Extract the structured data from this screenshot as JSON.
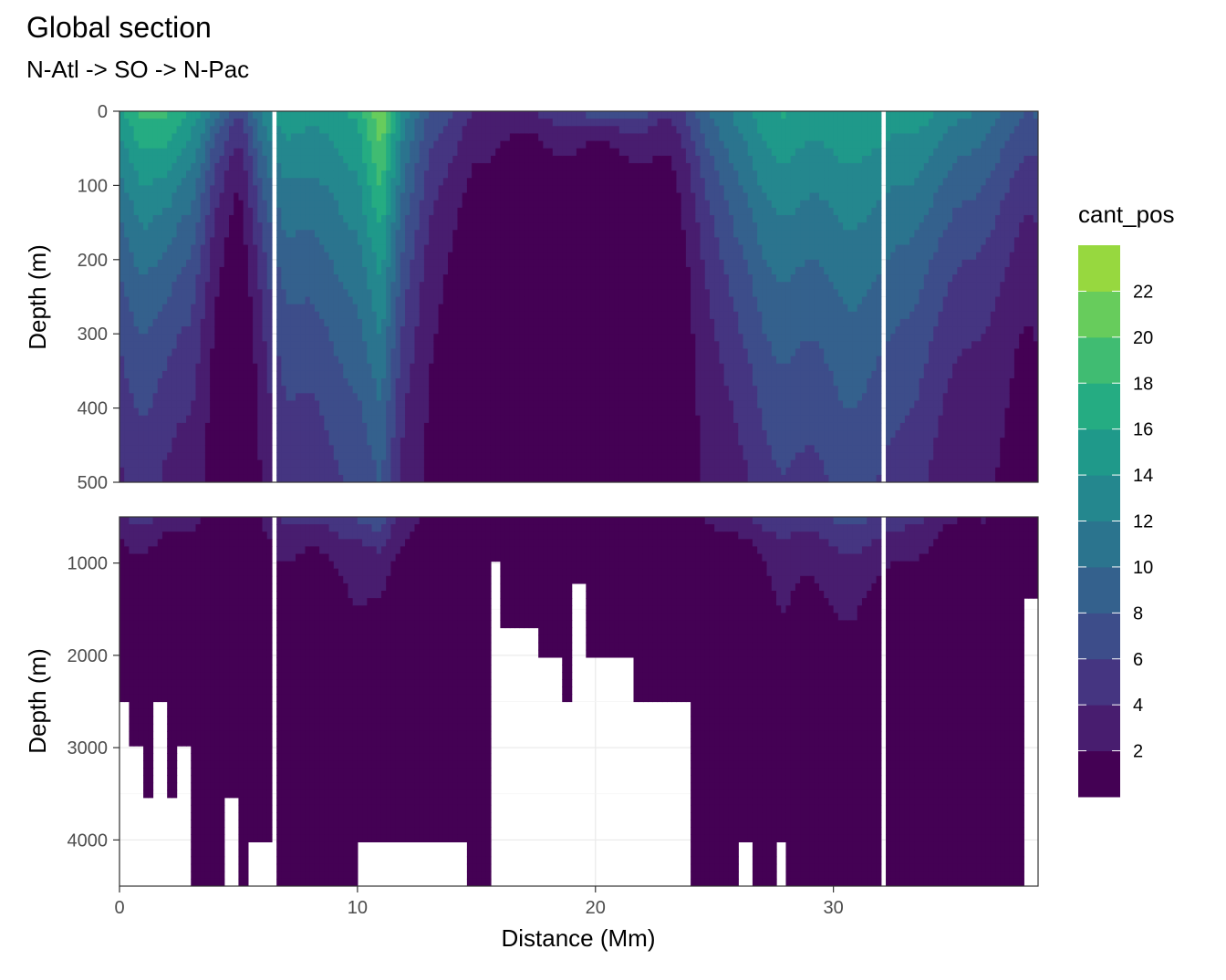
{
  "chart_data": {
    "type": "heatmap",
    "title": "Global section",
    "subtitle": "N-Atl -> SO -> N-Pac",
    "xlabel": "Distance (Mm)",
    "ylabel": "Depth (m)",
    "xlim": [
      0,
      38.6
    ],
    "x_ticks": [
      "0",
      "10",
      "20",
      "30"
    ],
    "panels": [
      {
        "name": "upper",
        "ylim": [
          0,
          500
        ],
        "y_ticks": [
          "0",
          "100",
          "200",
          "300",
          "400",
          "500"
        ]
      },
      {
        "name": "lower",
        "ylim": [
          500,
          4500
        ],
        "y_ticks": [
          "1000",
          "2000",
          "3000",
          "4000"
        ]
      }
    ],
    "legend": {
      "title": "cant_pos",
      "position": "right",
      "breaks": [
        0,
        2,
        4,
        6,
        8,
        10,
        12,
        14,
        16,
        18,
        20,
        22,
        24
      ],
      "labels": [
        "2",
        "4",
        "6",
        "8",
        "10",
        "12",
        "14",
        "16",
        "18",
        "20",
        "22"
      ],
      "colors": [
        "#440154",
        "#481d6f",
        "#453581",
        "#3d4d8a",
        "#34618d",
        "#2b748e",
        "#24878e",
        "#1f998a",
        "#25ac82",
        "#40bc72",
        "#67cc5c",
        "#97d83f",
        "#cbe11e",
        "#fde725"
      ]
    },
    "grid": true,
    "gaps_x": [
      6.6,
      32.1
    ],
    "profile": {
      "x": [
        0,
        1,
        2,
        3,
        4,
        5,
        6,
        7,
        8,
        9,
        10,
        11,
        12,
        13,
        14,
        15,
        16,
        17,
        18,
        19,
        20,
        21,
        22,
        23,
        24,
        25,
        26,
        27,
        28,
        29,
        30,
        31,
        32,
        33,
        34,
        35,
        36,
        37,
        38
      ],
      "surface": [
        14,
        17,
        18,
        15,
        10,
        6,
        12,
        14,
        14,
        14,
        15,
        22,
        12,
        7,
        6,
        3,
        2,
        3,
        4,
        5,
        7,
        8,
        6,
        4,
        6,
        9,
        12,
        14,
        15,
        15,
        15,
        15,
        15,
        14,
        13,
        12,
        11,
        9,
        8
      ],
      "scale_depth": [
        300,
        330,
        300,
        280,
        120,
        80,
        200,
        330,
        380,
        450,
        480,
        500,
        320,
        180,
        140,
        60,
        30,
        30,
        30,
        30,
        30,
        30,
        40,
        60,
        120,
        220,
        350,
        420,
        450,
        480,
        500,
        500,
        460,
        380,
        300,
        280,
        250,
        220,
        200
      ]
    },
    "seafloor": {
      "x": [
        0,
        0.5,
        1,
        1.5,
        2,
        2.5,
        3,
        3.5,
        4,
        4.5,
        5,
        5.5,
        6,
        6.5,
        7,
        7.5,
        8,
        8.5,
        9,
        9.5,
        10,
        10.5,
        11,
        11.5,
        12,
        12.5,
        13,
        13.5,
        14,
        14.5,
        15,
        15.5,
        16,
        16.5,
        17,
        17.5,
        18,
        18.5,
        19,
        19.5,
        20,
        20.5,
        21,
        21.5,
        22,
        22.5,
        23,
        23.5,
        24,
        24.5,
        25,
        25.5,
        26,
        26.5,
        27,
        27.5,
        28,
        28.5,
        29,
        29.5,
        30,
        30.5,
        31,
        31.5,
        32,
        32.5,
        33,
        33.5,
        34,
        34.5,
        35,
        35.5,
        36,
        36.5,
        37,
        37.5,
        38,
        38.5
      ],
      "depth": [
        2500,
        3000,
        3500,
        2500,
        3500,
        3000,
        4500,
        4500,
        4500,
        3500,
        4500,
        4000,
        4000,
        4500,
        4500,
        4500,
        4500,
        4500,
        4500,
        4500,
        4000,
        4000,
        4000,
        4000,
        4000,
        4000,
        4000,
        4000,
        4000,
        4500,
        4500,
        1000,
        1700,
        1700,
        1700,
        2000,
        2000,
        2500,
        1200,
        2000,
        2000,
        2000,
        2000,
        2500,
        2500,
        2500,
        2500,
        2500,
        4500,
        4500,
        4500,
        4500,
        4000,
        4500,
        4500,
        4000,
        4500,
        4500,
        4500,
        4500,
        4500,
        4500,
        4500,
        4500,
        4500,
        4500,
        4500,
        4500,
        4500,
        4500,
        4500,
        4500,
        4500,
        4500,
        4500,
        4500,
        1400,
        1400
      ]
    }
  }
}
